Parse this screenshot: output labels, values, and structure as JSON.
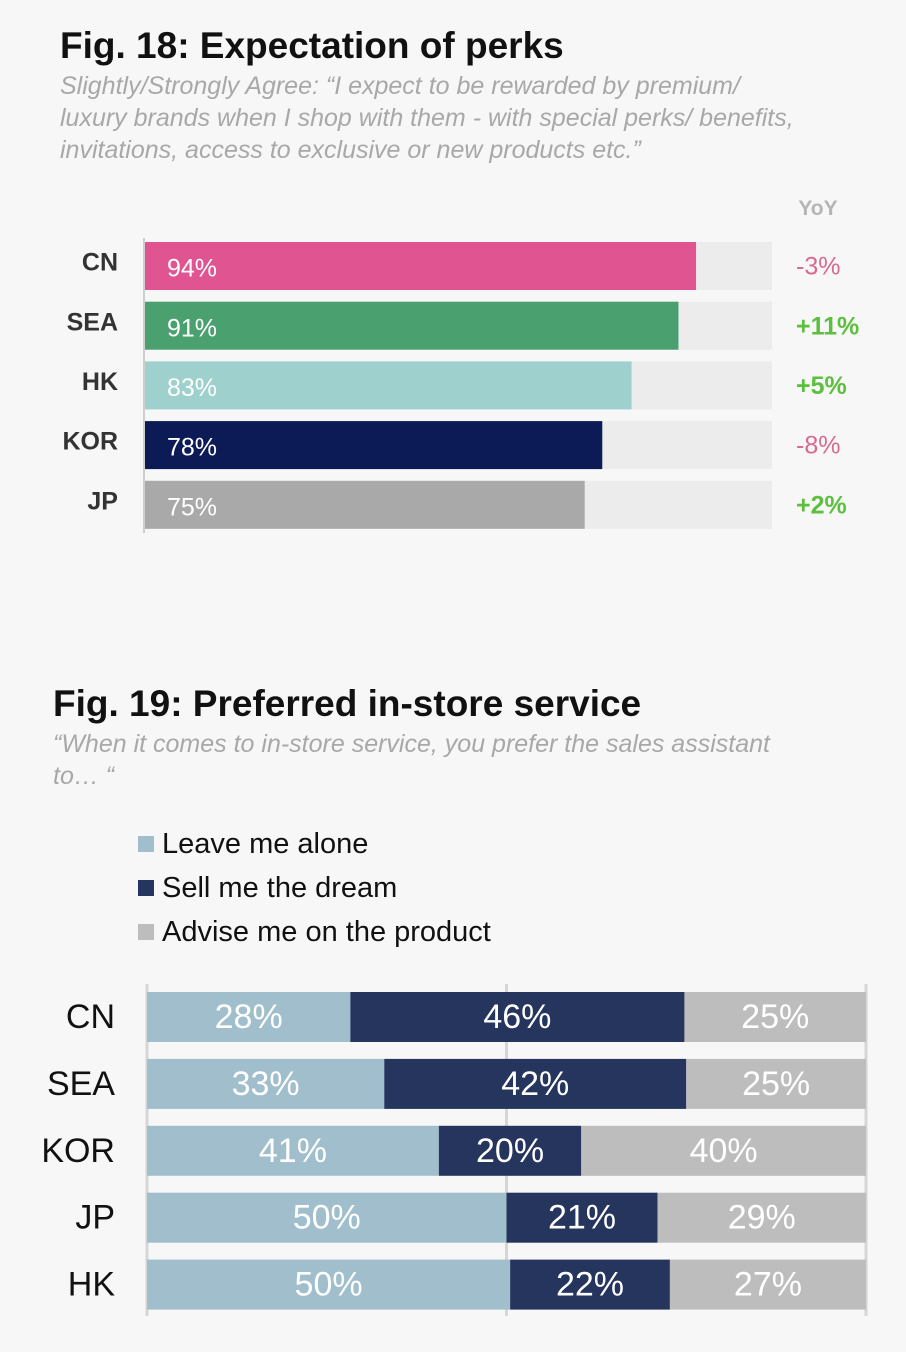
{
  "figures": [
    {
      "title": "Fig. 18: Expectation of perks",
      "subtitle": "Slightly/Strongly Agree: “I expect to be rewarded by premium/ luxury brands when I shop with them - with special perks/ benefits, invitations, access to exclusive or new products etc.”",
      "yoy_header": "YoY"
    },
    {
      "title": "Fig. 19: Preferred in-store service",
      "subtitle": "“When it comes to in-store service, you prefer the sales assistant to… “"
    }
  ],
  "chart_data": [
    {
      "type": "bar",
      "orientation": "horizontal",
      "title": "Fig. 18: Expectation of perks",
      "categories": [
        "CN",
        "SEA",
        "HK",
        "KOR",
        "JP"
      ],
      "values": [
        94,
        91,
        83,
        78,
        75
      ],
      "value_labels": [
        "94%",
        "91%",
        "83%",
        "78%",
        "75%"
      ],
      "colors": [
        "#e05492",
        "#4aa06e",
        "#9ed0cd",
        "#0c1b56",
        "#a9a9a9"
      ],
      "background_color": "#ececec",
      "yoy": [
        "-3%",
        "+11%",
        "+5%",
        "-8%",
        "+2%"
      ],
      "yoy_colors": {
        "negative": "#d86a90",
        "positive": "#5dbf3e"
      },
      "xlim": [
        0,
        100
      ]
    },
    {
      "type": "bar",
      "orientation": "horizontal",
      "stacked": true,
      "title": "Fig. 19: Preferred in-store service",
      "categories": [
        "CN",
        "SEA",
        "KOR",
        "JP",
        "HK"
      ],
      "series": [
        {
          "name": "Leave me alone",
          "color": "#a0becb",
          "values": [
            28,
            33,
            41,
            50,
            50
          ],
          "labels": [
            "28%",
            "33%",
            "41%",
            "50%",
            "50%"
          ]
        },
        {
          "name": "Sell me the dream",
          "color": "#26355e",
          "values": [
            46,
            42,
            20,
            21,
            22
          ],
          "labels": [
            "46%",
            "42%",
            "20%",
            "21%",
            "22%"
          ]
        },
        {
          "name": "Advise me on the product",
          "color": "#bdbdbd",
          "values": [
            25,
            25,
            40,
            29,
            27
          ],
          "labels": [
            "25%",
            "25%",
            "40%",
            "29%",
            "27%"
          ]
        }
      ],
      "legend": "top-left",
      "grid": true
    }
  ]
}
